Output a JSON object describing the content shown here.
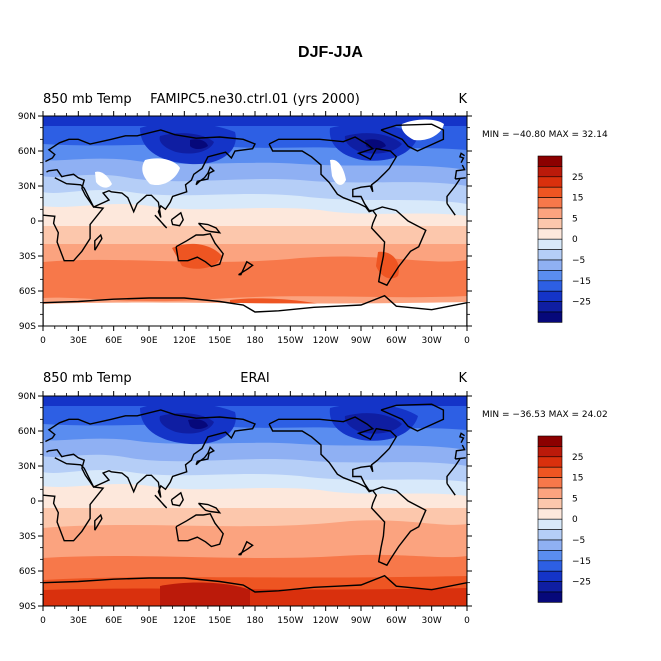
{
  "title": "DJF-JJA",
  "panels": [
    {
      "left_label": "850 mb Temp",
      "center_label": "FAMIPC5.ne30.ctrl.01 (yrs 2000)",
      "units": "K",
      "stats": "MIN = −40.80 MAX =  32.14",
      "missing_over_high_terrain": true
    },
    {
      "left_label": "850 mb Temp",
      "center_label": "ERAI",
      "units": "K",
      "stats": "MIN = −36.53 MAX =  24.02",
      "missing_over_high_terrain": false
    }
  ],
  "lat_ticks": [
    "90N",
    "60N",
    "30N",
    "0",
    "30S",
    "60S",
    "90S"
  ],
  "lon_ticks": [
    "0",
    "30E",
    "60E",
    "90E",
    "120E",
    "150E",
    "180",
    "150W",
    "120W",
    "90W",
    "60W",
    "30W",
    "0"
  ],
  "colorbar": {
    "labels": [
      "25",
      "15",
      "5",
      "0",
      "−5",
      "−15",
      "−25"
    ],
    "levels": [
      30,
      25,
      20,
      15,
      10,
      5,
      2,
      0,
      -2,
      -5,
      -10,
      -15,
      -20,
      -25,
      -30
    ],
    "colors": [
      "#8b0000",
      "#bb1a0a",
      "#d9300d",
      "#ee5522",
      "#f7784a",
      "#fba37f",
      "#fcc7ac",
      "#fde8dc",
      "#d8e9fa",
      "#b5cef7",
      "#8fb0f3",
      "#5a8df0",
      "#2d5fe4",
      "#1434c8",
      "#0f1ea2",
      "#06087a"
    ]
  }
}
